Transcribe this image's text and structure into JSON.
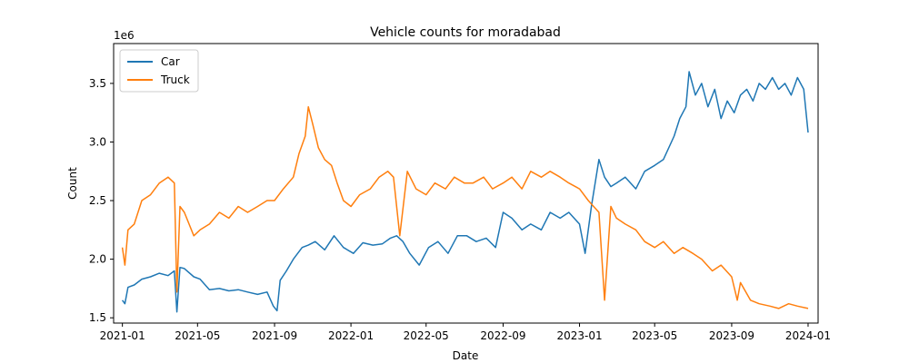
{
  "chart_data": {
    "type": "line",
    "title": "Vehicle counts for moradabad",
    "xlabel": "Date",
    "ylabel": "Count",
    "y_multiplier_label": "1e6",
    "xlim": [
      "2020-12-18",
      "2024-01-17"
    ],
    "ylim": [
      1.455,
      3.84
    ],
    "x_ticks": [
      "2021-01-01",
      "2021-05-01",
      "2021-09-01",
      "2022-01-01",
      "2022-05-01",
      "2022-09-01",
      "2023-01-01",
      "2023-05-01",
      "2023-09-01",
      "2024-01-01"
    ],
    "x_tick_labels": [
      "2021-01",
      "2021-05",
      "2021-09",
      "2022-01",
      "2022-05",
      "2022-09",
      "2023-01",
      "2023-05",
      "2023-09",
      "2024-01"
    ],
    "y_ticks": [
      1.5,
      2.0,
      2.5,
      3.0,
      3.5
    ],
    "y_tick_labels": [
      "1.5",
      "2.0",
      "2.5",
      "3.0",
      "3.5"
    ],
    "legend_position": "upper-left",
    "grid": false,
    "series": [
      {
        "name": "Car",
        "color": "#1f77b4",
        "x": [
          "2021-01-01",
          "2021-01-05",
          "2021-01-10",
          "2021-01-20",
          "2021-02-01",
          "2021-02-15",
          "2021-03-01",
          "2021-03-15",
          "2021-03-25",
          "2021-03-29",
          "2021-04-03",
          "2021-04-10",
          "2021-04-25",
          "2021-05-05",
          "2021-05-20",
          "2021-06-05",
          "2021-06-20",
          "2021-07-05",
          "2021-07-20",
          "2021-08-05",
          "2021-08-20",
          "2021-08-30",
          "2021-09-05",
          "2021-09-10",
          "2021-09-20",
          "2021-10-01",
          "2021-10-15",
          "2021-10-25",
          "2021-11-05",
          "2021-11-20",
          "2021-12-05",
          "2021-12-20",
          "2022-01-05",
          "2022-01-20",
          "2022-02-05",
          "2022-02-20",
          "2022-03-05",
          "2022-03-15",
          "2022-03-25",
          "2022-04-05",
          "2022-04-20",
          "2022-05-05",
          "2022-05-20",
          "2022-06-05",
          "2022-06-20",
          "2022-07-05",
          "2022-07-20",
          "2022-08-05",
          "2022-08-20",
          "2022-09-01",
          "2022-09-15",
          "2022-10-01",
          "2022-10-15",
          "2022-11-01",
          "2022-11-15",
          "2022-12-01",
          "2022-12-15",
          "2023-01-01",
          "2023-01-10",
          "2023-01-20",
          "2023-02-01",
          "2023-02-10",
          "2023-02-20",
          "2023-03-01",
          "2023-03-15",
          "2023-04-01",
          "2023-04-15",
          "2023-05-01",
          "2023-05-15",
          "2023-06-01",
          "2023-06-10",
          "2023-06-20",
          "2023-06-25",
          "2023-07-05",
          "2023-07-15",
          "2023-07-25",
          "2023-08-05",
          "2023-08-15",
          "2023-08-25",
          "2023-09-05",
          "2023-09-15",
          "2023-09-25",
          "2023-10-05",
          "2023-10-15",
          "2023-10-25",
          "2023-11-05",
          "2023-11-15",
          "2023-11-25",
          "2023-12-05",
          "2023-12-15",
          "2023-12-25",
          "2024-01-01"
        ],
        "values": [
          1.65,
          1.62,
          1.76,
          1.78,
          1.83,
          1.85,
          1.88,
          1.86,
          1.9,
          1.55,
          1.93,
          1.92,
          1.85,
          1.83,
          1.74,
          1.75,
          1.73,
          1.74,
          1.72,
          1.7,
          1.72,
          1.6,
          1.56,
          1.82,
          1.9,
          2.0,
          2.1,
          2.12,
          2.15,
          2.08,
          2.2,
          2.1,
          2.05,
          2.14,
          2.12,
          2.13,
          2.18,
          2.2,
          2.15,
          2.05,
          1.95,
          2.1,
          2.15,
          2.05,
          2.2,
          2.2,
          2.15,
          2.18,
          2.1,
          2.4,
          2.35,
          2.25,
          2.3,
          2.25,
          2.4,
          2.35,
          2.4,
          2.3,
          2.05,
          2.45,
          2.85,
          2.7,
          2.62,
          2.65,
          2.7,
          2.6,
          2.75,
          2.8,
          2.85,
          3.05,
          3.2,
          3.3,
          3.6,
          3.4,
          3.5,
          3.3,
          3.45,
          3.2,
          3.35,
          3.25,
          3.4,
          3.45,
          3.35,
          3.5,
          3.45,
          3.55,
          3.45,
          3.5,
          3.4,
          3.55,
          3.45,
          3.08
        ]
      },
      {
        "name": "Truck",
        "color": "#ff7f0e",
        "x": [
          "2021-01-01",
          "2021-01-05",
          "2021-01-10",
          "2021-01-20",
          "2021-02-01",
          "2021-02-15",
          "2021-03-01",
          "2021-03-15",
          "2021-03-25",
          "2021-03-29",
          "2021-04-03",
          "2021-04-10",
          "2021-04-25",
          "2021-05-05",
          "2021-05-20",
          "2021-06-05",
          "2021-06-20",
          "2021-07-05",
          "2021-07-20",
          "2021-08-05",
          "2021-08-20",
          "2021-09-01",
          "2021-09-15",
          "2021-10-01",
          "2021-10-10",
          "2021-10-20",
          "2021-10-25",
          "2021-11-01",
          "2021-11-10",
          "2021-11-20",
          "2021-12-01",
          "2021-12-10",
          "2021-12-20",
          "2022-01-01",
          "2022-01-15",
          "2022-02-01",
          "2022-02-15",
          "2022-03-01",
          "2022-03-10",
          "2022-03-20",
          "2022-04-01",
          "2022-04-15",
          "2022-05-01",
          "2022-05-15",
          "2022-06-01",
          "2022-06-15",
          "2022-07-01",
          "2022-07-15",
          "2022-08-01",
          "2022-08-15",
          "2022-09-01",
          "2022-09-15",
          "2022-10-01",
          "2022-10-15",
          "2022-11-01",
          "2022-11-15",
          "2022-12-01",
          "2022-12-15",
          "2023-01-01",
          "2023-01-15",
          "2023-02-01",
          "2023-02-10",
          "2023-02-20",
          "2023-03-01",
          "2023-03-15",
          "2023-04-01",
          "2023-04-15",
          "2023-05-01",
          "2023-05-15",
          "2023-06-01",
          "2023-06-15",
          "2023-07-01",
          "2023-07-15",
          "2023-08-01",
          "2023-08-15",
          "2023-09-01",
          "2023-09-10",
          "2023-09-15",
          "2023-10-01",
          "2023-10-15",
          "2023-11-01",
          "2023-11-15",
          "2023-12-01",
          "2023-12-15",
          "2024-01-01"
        ],
        "values": [
          2.1,
          1.95,
          2.25,
          2.3,
          2.5,
          2.55,
          2.65,
          2.7,
          2.65,
          1.72,
          2.45,
          2.4,
          2.2,
          2.25,
          2.3,
          2.4,
          2.35,
          2.45,
          2.4,
          2.45,
          2.5,
          2.5,
          2.6,
          2.7,
          2.9,
          3.05,
          3.3,
          3.15,
          2.95,
          2.85,
          2.8,
          2.65,
          2.5,
          2.45,
          2.55,
          2.6,
          2.7,
          2.75,
          2.7,
          2.2,
          2.75,
          2.6,
          2.55,
          2.65,
          2.6,
          2.7,
          2.65,
          2.65,
          2.7,
          2.6,
          2.65,
          2.7,
          2.6,
          2.75,
          2.7,
          2.75,
          2.7,
          2.65,
          2.6,
          2.5,
          2.4,
          1.65,
          2.45,
          2.35,
          2.3,
          2.25,
          2.15,
          2.1,
          2.15,
          2.05,
          2.1,
          2.05,
          2.0,
          1.9,
          1.95,
          1.85,
          1.65,
          1.8,
          1.65,
          1.62,
          1.6,
          1.58,
          1.62,
          1.6,
          1.58
        ]
      }
    ]
  }
}
